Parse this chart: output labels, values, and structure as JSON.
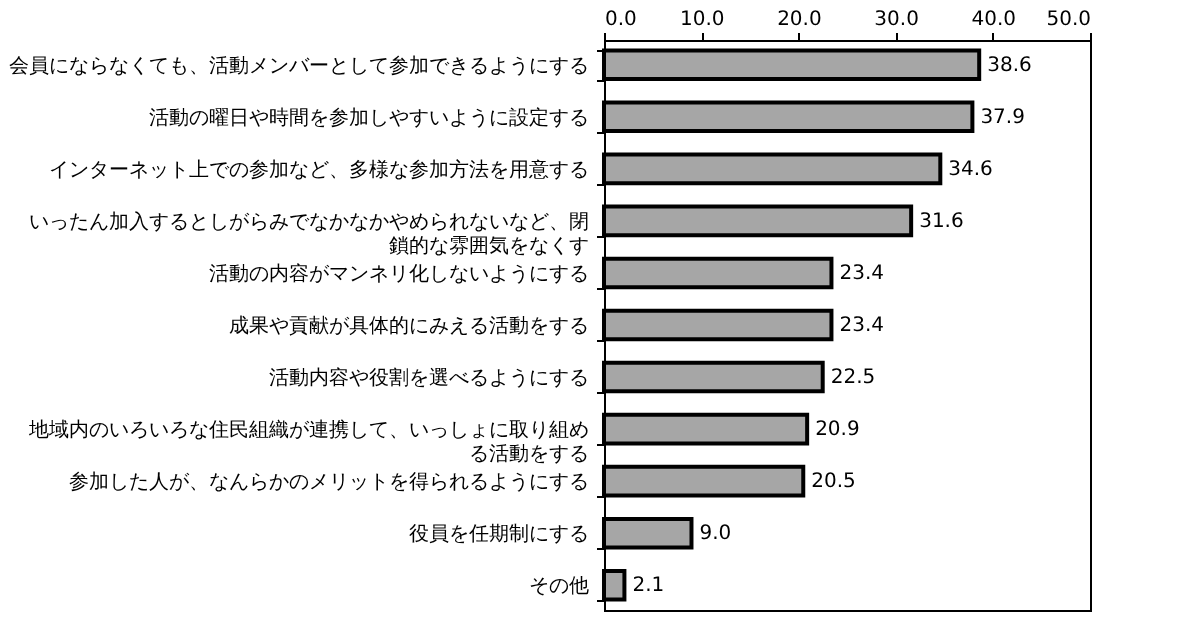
{
  "chart_data": {
    "type": "bar",
    "orientation": "horizontal",
    "categories": [
      "会員にならなくても、活動メンバーとして参加できるようにする",
      "活動の曜日や時間を参加しやすいように設定する",
      "インターネット上での参加など、多様な参加方法を用意する",
      "いったん加入するとしがらみでなかなかやめられないなど、閉鎖的な雰囲気をなくす",
      "活動の内容がマンネリ化しないようにする",
      "成果や貢献が具体的にみえる活動をする",
      "活動内容や役割を選べるようにする",
      "地域内のいろいろな住民組織が連携して、いっしょに取り組める活動をする",
      "参加した人が、なんらかのメリットを得られるようにする",
      "役員を任期制にする",
      "その他"
    ],
    "values": [
      38.6,
      37.9,
      34.6,
      31.6,
      23.4,
      23.4,
      22.5,
      20.9,
      20.5,
      9.0,
      2.1
    ],
    "color": "#a6a6a6",
    "xlim": [
      0,
      50
    ],
    "xticks": [
      {
        "value": 0,
        "label": "0.0"
      },
      {
        "value": 10,
        "label": "10.0"
      },
      {
        "value": 20,
        "label": "20.0"
      },
      {
        "value": 30,
        "label": "30.0"
      },
      {
        "value": 40,
        "label": "40.0"
      },
      {
        "value": 50,
        "label": "50.0"
      }
    ],
    "value_labels": [
      "38.6",
      "37.9",
      "34.6",
      "31.6",
      "23.4",
      "23.4",
      "22.5",
      "20.9",
      "20.5",
      "9.0",
      "2.1"
    ],
    "grid": false
  }
}
